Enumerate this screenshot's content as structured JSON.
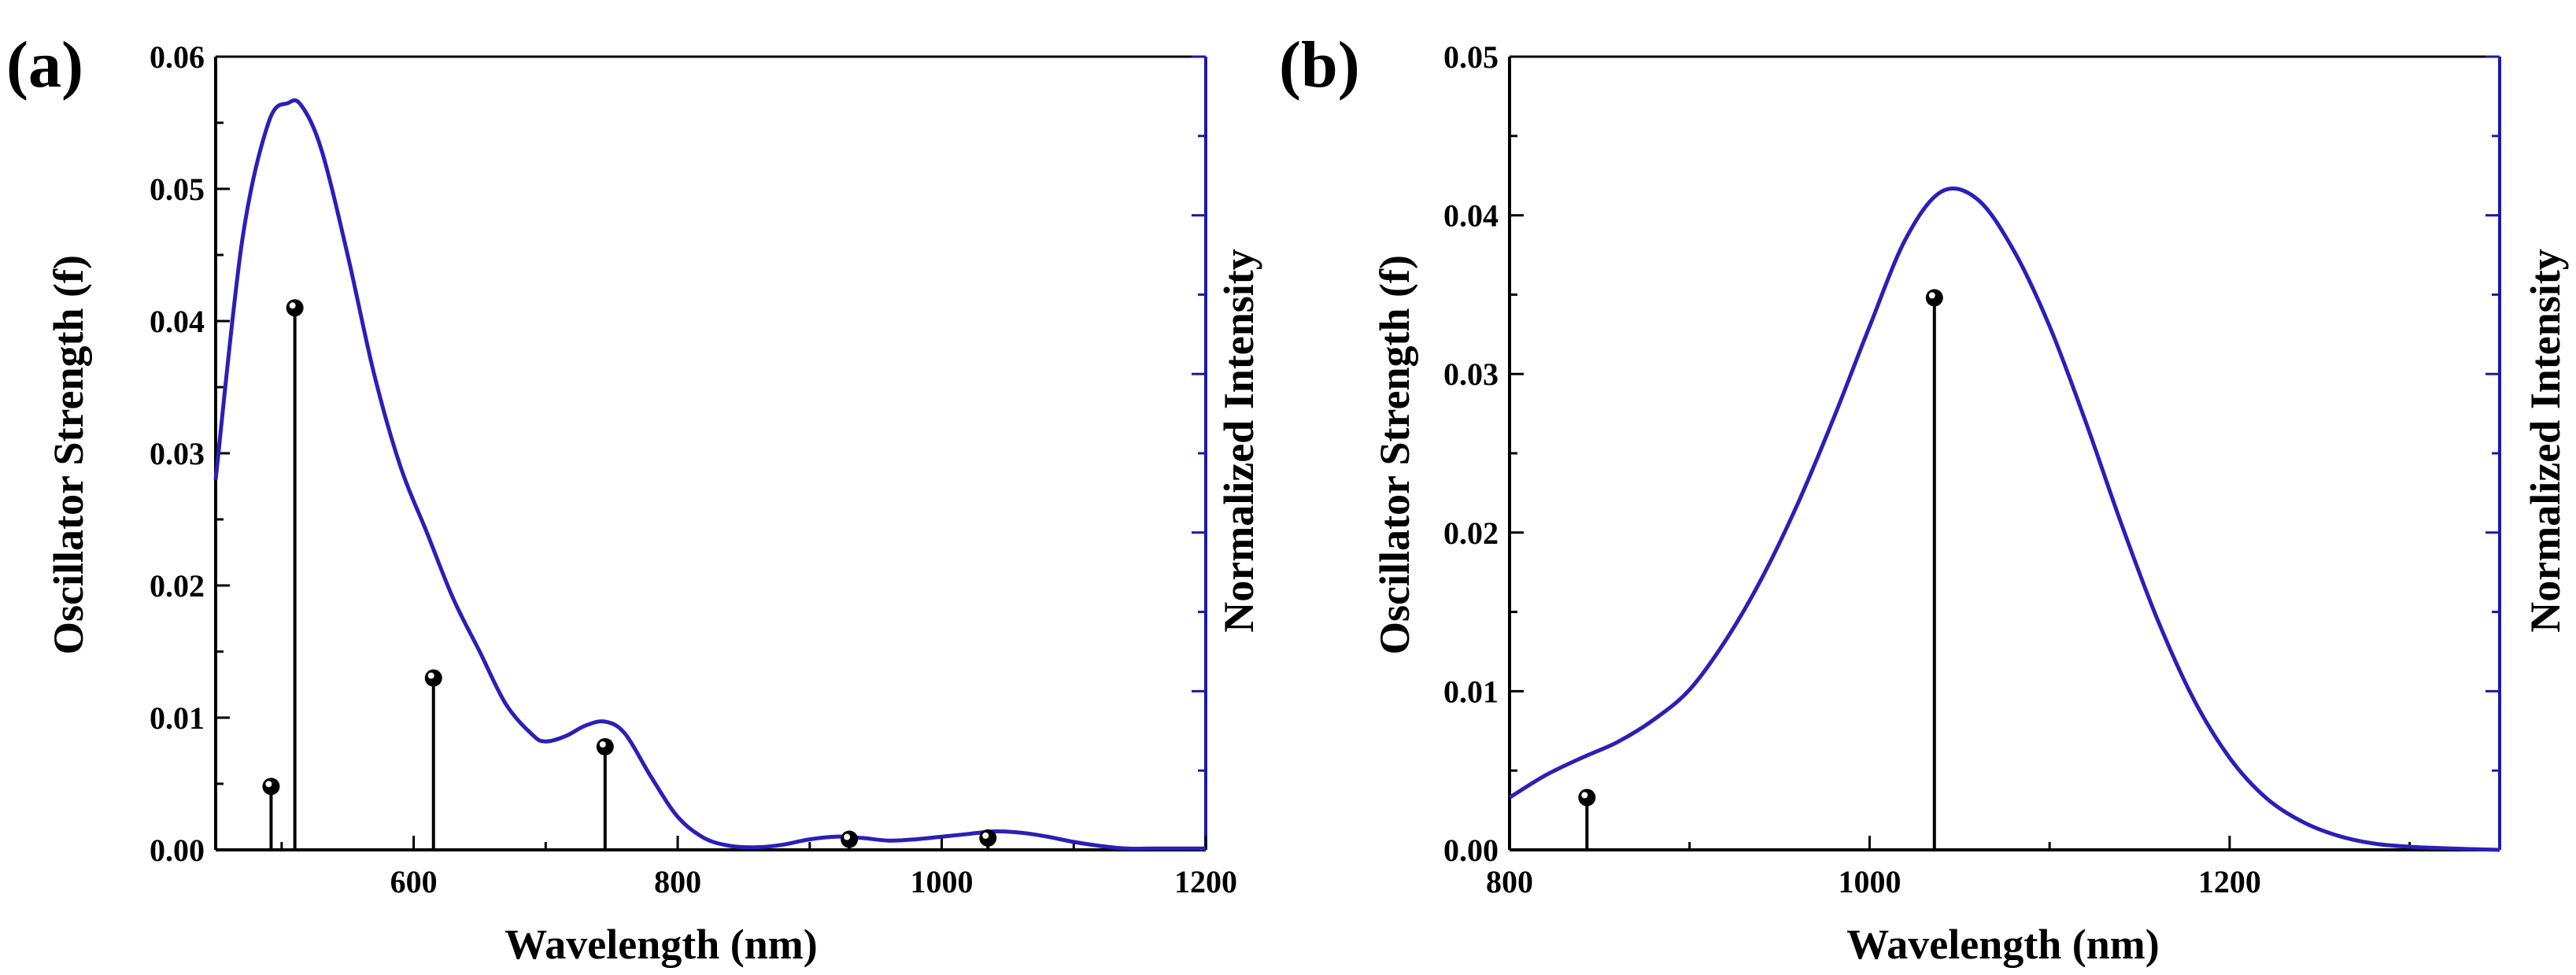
{
  "colors": {
    "axis_left": "#000000",
    "axis_right": "#1a1aa8",
    "curve": "#2a1fb8",
    "stick": "#000000"
  },
  "chart_data": [
    {
      "panel_label": "(a)",
      "type": "line",
      "xlabel": "Wavelength (nm)",
      "ylabel": "Oscillator Strength (f)",
      "ylabel_right": "Normalized Intensity",
      "xlim": [
        450,
        1200
      ],
      "ylim": [
        0,
        0.06
      ],
      "xticks": [
        600,
        800,
        1000,
        1200
      ],
      "xtick_labels": [
        "600",
        "800",
        "1000",
        "1200"
      ],
      "yticks": [
        0,
        0.01,
        0.02,
        0.03,
        0.04,
        0.05,
        0.06
      ],
      "ytick_labels": [
        "0.00",
        "0.01",
        "0.02",
        "0.03",
        "0.04",
        "0.05",
        "0.06"
      ],
      "right_ytick_fracs": [
        0.2,
        0.4,
        0.6,
        0.8,
        1.0
      ],
      "sticks": {
        "x": [
          492,
          510,
          615,
          745,
          930,
          1035
        ],
        "y": [
          0.0048,
          0.041,
          0.013,
          0.0078,
          0.0008,
          0.0009
        ]
      },
      "curve": {
        "name": "Normalized Intensity",
        "x": [
          450,
          470,
          490,
          505,
          515,
          530,
          550,
          570,
          590,
          610,
          630,
          650,
          670,
          690,
          700,
          715,
          730,
          745,
          760,
          780,
          800,
          820,
          840,
          860,
          880,
          900,
          920,
          940,
          960,
          980,
          1000,
          1020,
          1040,
          1060,
          1080,
          1100,
          1120,
          1140,
          1160,
          1200
        ],
        "y": [
          0.028,
          0.046,
          0.055,
          0.0565,
          0.0563,
          0.053,
          0.045,
          0.036,
          0.029,
          0.024,
          0.019,
          0.015,
          0.011,
          0.0087,
          0.0082,
          0.0086,
          0.0094,
          0.0097,
          0.0088,
          0.0055,
          0.0025,
          0.0009,
          0.0003,
          0.0002,
          0.0004,
          0.0008,
          0.001,
          0.0009,
          0.0007,
          0.0008,
          0.001,
          0.0012,
          0.0014,
          0.0013,
          0.001,
          0.0006,
          0.0003,
          0.0001,
          0.0001,
          0.0001
        ]
      }
    },
    {
      "panel_label": "(b)",
      "type": "line",
      "xlabel": "Wavelength (nm)",
      "ylabel": "Oscillator Strength (f)",
      "ylabel_right": "Normalized Intensity",
      "xlim": [
        800,
        1350
      ],
      "ylim": [
        0,
        0.05
      ],
      "xticks": [
        800,
        1000,
        1200
      ],
      "xtick_labels": [
        "800",
        "1000",
        "1200"
      ],
      "yticks": [
        0,
        0.01,
        0.02,
        0.03,
        0.04,
        0.05
      ],
      "ytick_labels": [
        "0.00",
        "0.01",
        "0.02",
        "0.03",
        "0.04",
        "0.05"
      ],
      "right_ytick_fracs": [
        0.2,
        0.4,
        0.6,
        0.8,
        1.0
      ],
      "sticks": {
        "x": [
          843,
          1036
        ],
        "y": [
          0.0033,
          0.0348
        ]
      },
      "curve": {
        "name": "Normalized Intensity",
        "x": [
          800,
          820,
          840,
          860,
          880,
          900,
          920,
          940,
          960,
          980,
          1000,
          1020,
          1040,
          1060,
          1080,
          1100,
          1120,
          1140,
          1160,
          1180,
          1200,
          1220,
          1240,
          1260,
          1280,
          1300,
          1320,
          1350
        ],
        "y": [
          0.0033,
          0.0047,
          0.0058,
          0.0068,
          0.0082,
          0.0101,
          0.0132,
          0.0171,
          0.0218,
          0.0272,
          0.033,
          0.0385,
          0.0415,
          0.041,
          0.0378,
          0.033,
          0.027,
          0.0205,
          0.0145,
          0.0095,
          0.0058,
          0.0033,
          0.0018,
          0.0009,
          0.0004,
          0.0002,
          0.0001,
          0.0
        ]
      }
    }
  ]
}
